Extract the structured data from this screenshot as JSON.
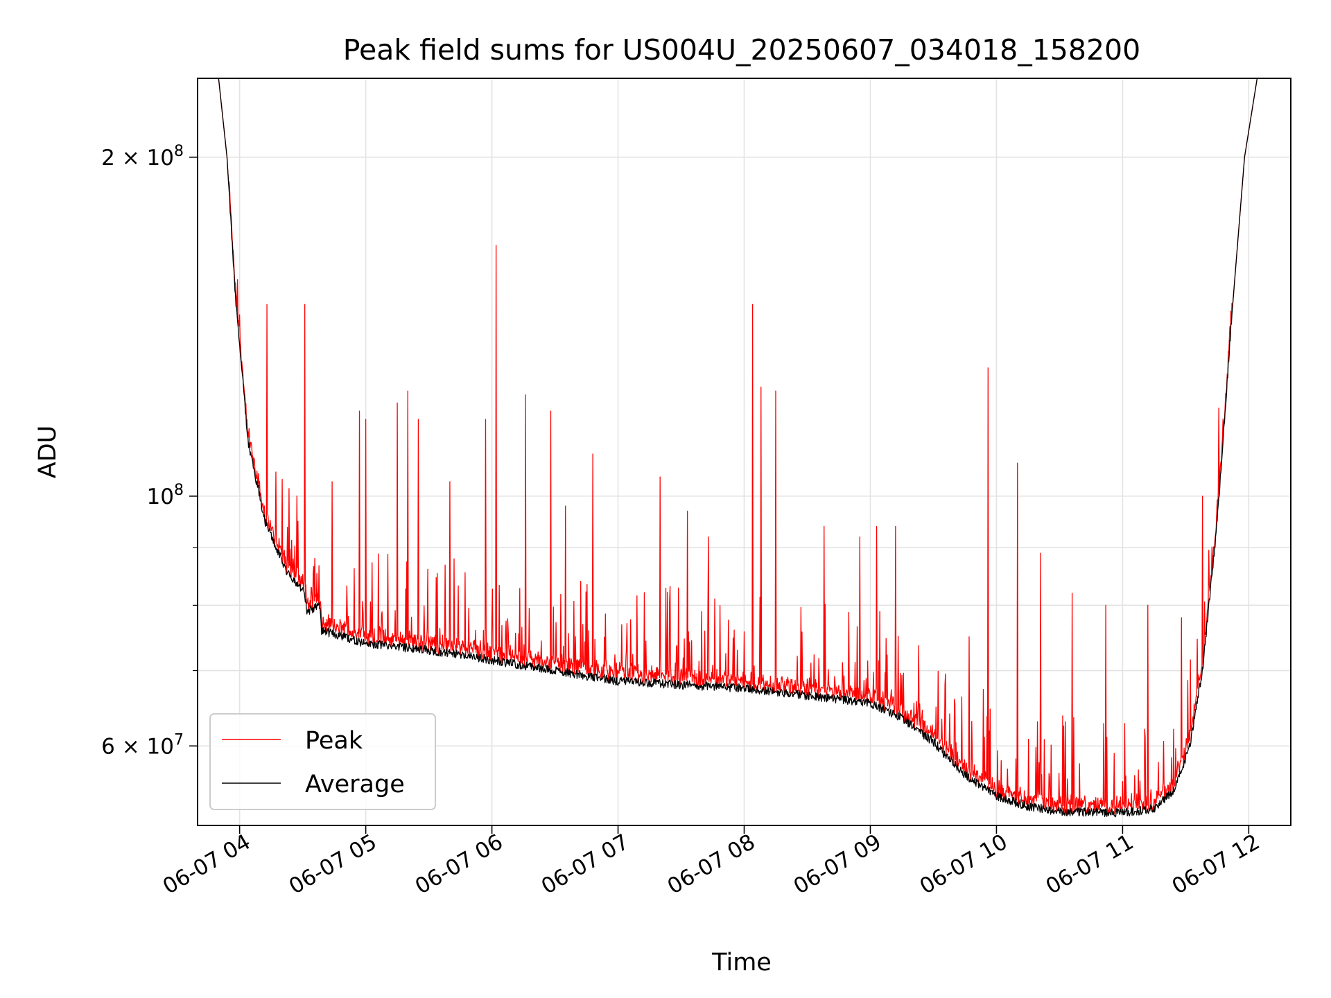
{
  "chart_data": {
    "type": "line",
    "title": "Peak field sums for US004U_20250607_034018_158200",
    "xlabel": "Time",
    "ylabel": "ADU",
    "x_scale": "time",
    "y_scale": "log",
    "xlim": [
      "2025-06-07 03:40",
      "2025-06-07 12:20"
    ],
    "ylim": [
      51000000,
      235000000
    ],
    "x_ticks": [
      {
        "value": "2025-06-07 04:00",
        "label": "06-07 04"
      },
      {
        "value": "2025-06-07 05:00",
        "label": "06-07 05"
      },
      {
        "value": "2025-06-07 06:00",
        "label": "06-07 06"
      },
      {
        "value": "2025-06-07 07:00",
        "label": "06-07 07"
      },
      {
        "value": "2025-06-07 08:00",
        "label": "06-07 08"
      },
      {
        "value": "2025-06-07 09:00",
        "label": "06-07 09"
      },
      {
        "value": "2025-06-07 10:00",
        "label": "06-07 10"
      },
      {
        "value": "2025-06-07 11:00",
        "label": "06-07 11"
      },
      {
        "value": "2025-06-07 12:00",
        "label": "06-07 12"
      }
    ],
    "y_major_ticks": [
      {
        "value": 100000000,
        "mantissa": "",
        "exponent": "8"
      },
      {
        "value": 60000000,
        "mantissa": "6",
        "exponent": "7"
      },
      {
        "value": 200000000,
        "mantissa": "2",
        "exponent": "8"
      }
    ],
    "y_minor_ticks": [
      70000000,
      80000000,
      90000000
    ],
    "grid": true,
    "legend_position": "lower-left",
    "series": [
      {
        "name": "Average",
        "color": "#000000",
        "points": [
          [
            "2025-06-07 03:40",
            235000000
          ],
          [
            "2025-06-07 03:50",
            235000000
          ],
          [
            "2025-06-07 03:54",
            200000000
          ],
          [
            "2025-06-07 03:58",
            150000000
          ],
          [
            "2025-06-07 04:04",
            112000000
          ],
          [
            "2025-06-07 04:12",
            95000000
          ],
          [
            "2025-06-07 04:22",
            86000000
          ],
          [
            "2025-06-07 04:31",
            82000000
          ],
          [
            "2025-06-07 04:32",
            79000000
          ],
          [
            "2025-06-07 04:38",
            80000000
          ],
          [
            "2025-06-07 04:39",
            76000000
          ],
          [
            "2025-06-07 05:00",
            74000000
          ],
          [
            "2025-06-07 05:30",
            73000000
          ],
          [
            "2025-06-07 06:00",
            71500000
          ],
          [
            "2025-06-07 06:30",
            70000000
          ],
          [
            "2025-06-07 07:00",
            68500000
          ],
          [
            "2025-06-07 07:30",
            68000000
          ],
          [
            "2025-06-07 08:00",
            67500000
          ],
          [
            "2025-06-07 08:30",
            66500000
          ],
          [
            "2025-06-07 09:00",
            65500000
          ],
          [
            "2025-06-07 09:15",
            63500000
          ],
          [
            "2025-06-07 09:30",
            60500000
          ],
          [
            "2025-06-07 09:45",
            56500000
          ],
          [
            "2025-06-07 10:00",
            54200000
          ],
          [
            "2025-06-07 10:15",
            53000000
          ],
          [
            "2025-06-07 10:30",
            52500000
          ],
          [
            "2025-06-07 11:00",
            52300000
          ],
          [
            "2025-06-07 11:15",
            52800000
          ],
          [
            "2025-06-07 11:25",
            55000000
          ],
          [
            "2025-06-07 11:32",
            60000000
          ],
          [
            "2025-06-07 11:38",
            70000000
          ],
          [
            "2025-06-07 11:45",
            95000000
          ],
          [
            "2025-06-07 11:52",
            145000000
          ],
          [
            "2025-06-07 11:58",
            200000000
          ],
          [
            "2025-06-07 12:04",
            235000000
          ],
          [
            "2025-06-07 12:20",
            235000000
          ]
        ]
      },
      {
        "name": "Peak",
        "color": "#ff0000",
        "baseline": "average",
        "spikes": [
          [
            "2025-06-07 04:13",
            148000000
          ],
          [
            "2025-06-07 04:31",
            148000000
          ],
          [
            "2025-06-07 04:44",
            103000000
          ],
          [
            "2025-06-07 04:57",
            119000000
          ],
          [
            "2025-06-07 05:00",
            117000000
          ],
          [
            "2025-06-07 05:15",
            121000000
          ],
          [
            "2025-06-07 05:20",
            124000000
          ],
          [
            "2025-06-07 05:25",
            117000000
          ],
          [
            "2025-06-07 05:40",
            103000000
          ],
          [
            "2025-06-07 05:57",
            117000000
          ],
          [
            "2025-06-07 06:02",
            167000000
          ],
          [
            "2025-06-07 06:16",
            123000000
          ],
          [
            "2025-06-07 06:28",
            119000000
          ],
          [
            "2025-06-07 06:35",
            98000000
          ],
          [
            "2025-06-07 06:48",
            109000000
          ],
          [
            "2025-06-07 07:20",
            104000000
          ],
          [
            "2025-06-07 07:33",
            97000000
          ],
          [
            "2025-06-07 07:43",
            92000000
          ],
          [
            "2025-06-07 08:04",
            148000000
          ],
          [
            "2025-06-07 08:08",
            125000000
          ],
          [
            "2025-06-07 08:15",
            124000000
          ],
          [
            "2025-06-07 08:38",
            94000000
          ],
          [
            "2025-06-07 08:55",
            92000000
          ],
          [
            "2025-06-07 09:03",
            94000000
          ],
          [
            "2025-06-07 09:12",
            94000000
          ],
          [
            "2025-06-07 09:47",
            75000000
          ],
          [
            "2025-06-07 09:56",
            130000000
          ],
          [
            "2025-06-07 10:10",
            107000000
          ],
          [
            "2025-06-07 10:21",
            89000000
          ],
          [
            "2025-06-07 10:36",
            82000000
          ],
          [
            "2025-06-07 10:52",
            80000000
          ],
          [
            "2025-06-07 11:12",
            80000000
          ],
          [
            "2025-06-07 11:28",
            78000000
          ],
          [
            "2025-06-07 11:38",
            100000000
          ],
          [
            "2025-06-07 11:42",
            85000000
          ]
        ]
      }
    ]
  }
}
